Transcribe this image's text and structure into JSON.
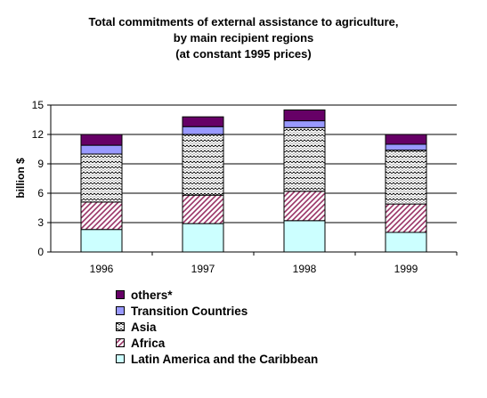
{
  "chart_data": {
    "type": "bar",
    "stacked": true,
    "title_lines": [
      "Total commitments of external assistance to agriculture,",
      "by main recipient regions",
      "(at constant 1995 prices)"
    ],
    "xlabel": "",
    "ylabel": "billion $",
    "ylim": [
      0,
      15
    ],
    "yticks": [
      "0",
      "3",
      "6",
      "9",
      "12",
      "15"
    ],
    "categories": [
      "1996",
      "1997",
      "1998",
      "1999"
    ],
    "series": [
      {
        "name": "Latin America and the Caribbean",
        "values": [
          2.3,
          2.9,
          3.2,
          2.0
        ],
        "color": "#ccffff",
        "pattern": "none"
      },
      {
        "name": "Africa",
        "values": [
          2.8,
          2.9,
          3.0,
          2.9
        ],
        "color": "#993366",
        "pattern": "diagonal"
      },
      {
        "name": "Asia",
        "values": [
          4.9,
          6.2,
          6.5,
          5.5
        ],
        "color": "#000000",
        "pattern": "zigzag"
      },
      {
        "name": "Transition Countries",
        "values": [
          0.9,
          0.8,
          0.7,
          0.6
        ],
        "color": "#9999ff",
        "pattern": "none"
      },
      {
        "name": "others*",
        "values": [
          1.1,
          1.0,
          1.1,
          1.0
        ],
        "color": "#660066",
        "pattern": "none"
      }
    ],
    "gridlines": true,
    "legend_position": "bottom"
  },
  "legend_order": [
    "others*",
    "Transition Countries",
    "Asia",
    "Africa",
    "Latin America and the Caribbean"
  ]
}
